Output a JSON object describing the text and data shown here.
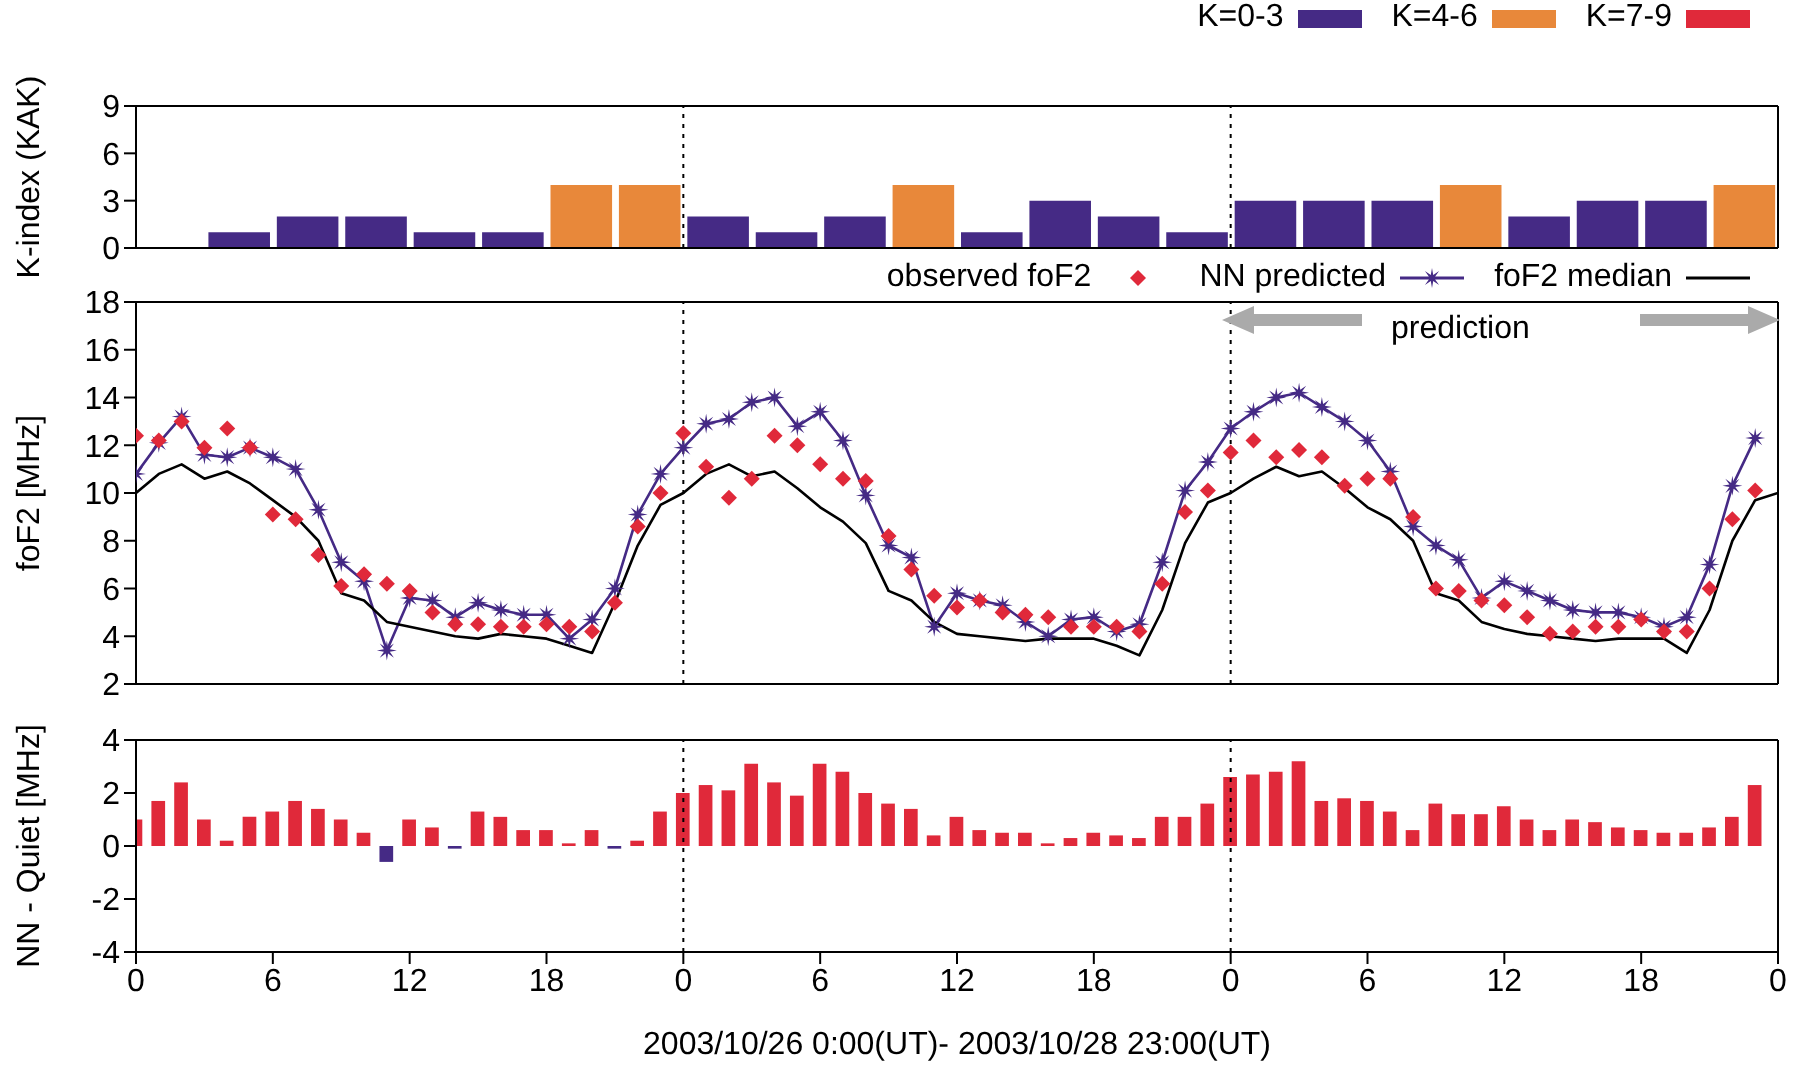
{
  "chart_data": [
    {
      "type": "bar",
      "ylabel": "K-index (KAK)",
      "x": [
        "2003-10-26T01:30",
        "2003-10-26T04:30",
        "2003-10-26T07:30",
        "2003-10-26T10:30",
        "2003-10-26T13:30",
        "2003-10-26T16:30",
        "2003-10-26T19:30",
        "2003-10-26T22:30",
        "2003-10-27T01:30",
        "2003-10-27T04:30",
        "2003-10-27T07:30",
        "2003-10-27T10:30",
        "2003-10-27T13:30",
        "2003-10-27T16:30",
        "2003-10-27T19:30",
        "2003-10-27T22:30",
        "2003-10-28T01:30",
        "2003-10-28T04:30",
        "2003-10-28T07:30",
        "2003-10-28T10:30",
        "2003-10-28T13:30",
        "2003-10-28T16:30",
        "2003-10-28T19:30",
        "2003-10-28T22:30"
      ],
      "xlim": [
        "2003-10-26T00:00",
        "2003-10-29T00:00"
      ],
      "ylim": [
        0,
        9
      ],
      "yticks": [
        0,
        3,
        6,
        9
      ],
      "stacked": true,
      "legend": "top right",
      "tick_labels": "y",
      "ref_lines": [
        {
          "axis": "x",
          "value": "2003-10-27T00:00",
          "color": "#000000",
          "line_style": "dotted"
        },
        {
          "axis": "x",
          "value": "2003-10-28T00:00",
          "color": "#000000",
          "line_style": "dotted"
        }
      ],
      "series": [
        {
          "name": "K=0-3",
          "color": "#452a85",
          "values": [
            0,
            1,
            2,
            2,
            1,
            1,
            null,
            null,
            2,
            1,
            2,
            null,
            1,
            3,
            2,
            1,
            3,
            3,
            3,
            null,
            2,
            3,
            3,
            null
          ]
        },
        {
          "name": "K=4-6",
          "color": "#e8883a",
          "values": [
            null,
            null,
            null,
            null,
            null,
            null,
            4,
            4,
            null,
            null,
            null,
            4,
            null,
            null,
            null,
            null,
            null,
            null,
            null,
            4,
            null,
            null,
            null,
            4
          ]
        },
        {
          "name": "K=7-9",
          "color": "#e0293a",
          "values": [
            null,
            null,
            null,
            null,
            null,
            null,
            null,
            null,
            null,
            null,
            null,
            null,
            null,
            null,
            null,
            null,
            null,
            null,
            null,
            null,
            null,
            null,
            null,
            null
          ]
        }
      ]
    },
    {
      "type": "line",
      "ylabel": "foF2 [MHz]",
      "xlim": [
        "2003-10-26T00:00",
        "2003-10-29T00:00"
      ],
      "ylim": [
        2,
        18
      ],
      "yticks": [
        2,
        4,
        6,
        8,
        10,
        12,
        14,
        16,
        18
      ],
      "legend": "top right",
      "tick_labels": "y",
      "annotations": [
        "prediction"
      ],
      "xticks": [
        {
          "value": "2003-10-26T00:00",
          "label": null
        },
        {
          "value": "2003-10-26T06:00",
          "label": null
        },
        {
          "value": "2003-10-26T12:00",
          "label": null
        },
        {
          "value": "2003-10-26T18:00",
          "label": null
        },
        {
          "value": "2003-10-27T00:00",
          "label": null
        },
        {
          "value": "2003-10-27T06:00",
          "label": null
        },
        {
          "value": "2003-10-27T12:00",
          "label": null
        },
        {
          "value": "2003-10-27T18:00",
          "label": null
        },
        {
          "value": "2003-10-28T00:00",
          "label": null
        },
        {
          "value": "2003-10-28T06:00",
          "label": null
        },
        {
          "value": "2003-10-28T12:00",
          "label": null
        },
        {
          "value": "2003-10-28T18:00",
          "label": null
        },
        {
          "value": "2003-10-29T00:00",
          "label": null
        }
      ],
      "ref_lines": [
        {
          "axis": "x",
          "value": "2003-10-27T00:00",
          "color": "#000000",
          "line_style": "dotted"
        },
        {
          "axis": "x",
          "value": "2003-10-28T00:00",
          "color": "#000000",
          "line_style": "dotted"
        }
      ],
      "x": [
        "2003-10-26T00:00",
        "2003-10-26T01:00",
        "2003-10-26T02:00",
        "2003-10-26T03:00",
        "2003-10-26T04:00",
        "2003-10-26T05:00",
        "2003-10-26T06:00",
        "2003-10-26T07:00",
        "2003-10-26T08:00",
        "2003-10-26T09:00",
        "2003-10-26T10:00",
        "2003-10-26T11:00",
        "2003-10-26T12:00",
        "2003-10-26T13:00",
        "2003-10-26T14:00",
        "2003-10-26T15:00",
        "2003-10-26T16:00",
        "2003-10-26T17:00",
        "2003-10-26T18:00",
        "2003-10-26T19:00",
        "2003-10-26T20:00",
        "2003-10-26T21:00",
        "2003-10-26T22:00",
        "2003-10-26T23:00",
        "2003-10-27T00:00",
        "2003-10-27T01:00",
        "2003-10-27T02:00",
        "2003-10-27T03:00",
        "2003-10-27T04:00",
        "2003-10-27T05:00",
        "2003-10-27T06:00",
        "2003-10-27T07:00",
        "2003-10-27T08:00",
        "2003-10-27T09:00",
        "2003-10-27T10:00",
        "2003-10-27T11:00",
        "2003-10-27T12:00",
        "2003-10-27T13:00",
        "2003-10-27T14:00",
        "2003-10-27T15:00",
        "2003-10-27T16:00",
        "2003-10-27T17:00",
        "2003-10-27T18:00",
        "2003-10-27T19:00",
        "2003-10-27T20:00",
        "2003-10-27T21:00",
        "2003-10-27T22:00",
        "2003-10-27T23:00",
        "2003-10-28T00:00",
        "2003-10-28T01:00",
        "2003-10-28T02:00",
        "2003-10-28T03:00",
        "2003-10-28T04:00",
        "2003-10-28T05:00",
        "2003-10-28T06:00",
        "2003-10-28T07:00",
        "2003-10-28T08:00",
        "2003-10-28T09:00",
        "2003-10-28T10:00",
        "2003-10-28T11:00",
        "2003-10-28T12:00",
        "2003-10-28T13:00",
        "2003-10-28T14:00",
        "2003-10-28T15:00",
        "2003-10-28T16:00",
        "2003-10-28T17:00",
        "2003-10-28T18:00",
        "2003-10-28T19:00",
        "2003-10-28T20:00",
        "2003-10-28T21:00",
        "2003-10-28T22:00",
        "2003-10-28T23:00"
      ],
      "series": [
        {
          "name": "observed foF2",
          "type": "scatter",
          "marker": "diamond",
          "color": "#e0293a",
          "values": [
            12.4,
            12.2,
            13.0,
            11.9,
            12.7,
            11.9,
            9.1,
            8.9,
            7.4,
            6.1,
            6.6,
            6.2,
            5.9,
            5.0,
            4.5,
            4.5,
            4.4,
            4.4,
            4.5,
            4.4,
            4.2,
            5.4,
            8.6,
            10.0,
            12.5,
            11.1,
            9.8,
            10.6,
            12.4,
            12.0,
            11.2,
            10.6,
            10.5,
            8.2,
            6.8,
            5.7,
            5.2,
            5.5,
            5.0,
            4.9,
            4.8,
            4.4,
            4.4,
            4.4,
            4.2,
            6.2,
            9.2,
            10.1,
            11.7,
            12.2,
            11.5,
            11.8,
            11.5,
            10.3,
            10.6,
            10.6,
            9.0,
            6.0,
            5.9,
            5.5,
            5.3,
            4.8,
            4.1,
            4.2,
            4.4,
            4.4,
            4.7,
            4.2,
            4.2,
            6.0,
            8.9,
            10.1
          ]
        },
        {
          "name": "NN predicted",
          "type": "line",
          "marker": "star",
          "color": "#452a85",
          "values": [
            10.8,
            12.1,
            13.2,
            11.6,
            11.5,
            11.9,
            11.5,
            11.0,
            9.3,
            7.1,
            6.3,
            3.4,
            5.6,
            5.5,
            4.8,
            5.4,
            5.1,
            4.9,
            4.9,
            3.9,
            4.7,
            6.0,
            9.1,
            10.8,
            11.9,
            12.9,
            13.1,
            13.8,
            14.0,
            12.8,
            13.4,
            12.2,
            9.9,
            7.8,
            7.3,
            4.4,
            5.8,
            5.5,
            5.3,
            4.6,
            4.0,
            4.7,
            4.8,
            4.2,
            4.5,
            7.1,
            10.1,
            11.3,
            12.7,
            13.4,
            14.0,
            14.2,
            13.6,
            13.0,
            12.2,
            10.9,
            8.6,
            7.8,
            7.2,
            5.6,
            6.3,
            5.9,
            5.5,
            5.1,
            5.0,
            5.0,
            4.8,
            4.4,
            4.8,
            7.0,
            10.3,
            12.3
          ]
        },
        {
          "name": "foF2 median",
          "type": "line",
          "marker": "none",
          "color": "#000000",
          "x": [
            "2003-10-26T00:00",
            "2003-10-26T01:00",
            "2003-10-26T02:00",
            "2003-10-26T03:00",
            "2003-10-26T04:00",
            "2003-10-26T05:00",
            "2003-10-26T06:00",
            "2003-10-26T07:00",
            "2003-10-26T08:00",
            "2003-10-26T09:00",
            "2003-10-26T10:00",
            "2003-10-26T11:00",
            "2003-10-26T12:00",
            "2003-10-26T13:00",
            "2003-10-26T14:00",
            "2003-10-26T15:00",
            "2003-10-26T16:00",
            "2003-10-26T17:00",
            "2003-10-26T18:00",
            "2003-10-26T19:00",
            "2003-10-26T20:00",
            "2003-10-26T21:00",
            "2003-10-26T22:00",
            "2003-10-26T23:00",
            "2003-10-27T00:00",
            "2003-10-27T01:00",
            "2003-10-27T02:00",
            "2003-10-27T03:00",
            "2003-10-27T04:00",
            "2003-10-27T05:00",
            "2003-10-27T06:00",
            "2003-10-27T07:00",
            "2003-10-27T08:00",
            "2003-10-27T09:00",
            "2003-10-27T10:00",
            "2003-10-27T11:00",
            "2003-10-27T12:00",
            "2003-10-27T13:00",
            "2003-10-27T14:00",
            "2003-10-27T15:00",
            "2003-10-27T16:00",
            "2003-10-27T17:00",
            "2003-10-27T18:00",
            "2003-10-27T19:00",
            "2003-10-27T20:00",
            "2003-10-27T21:00",
            "2003-10-27T22:00",
            "2003-10-27T23:00",
            "2003-10-28T00:00",
            "2003-10-28T01:00",
            "2003-10-28T02:00",
            "2003-10-28T03:00",
            "2003-10-28T04:00",
            "2003-10-28T05:00",
            "2003-10-28T06:00",
            "2003-10-28T07:00",
            "2003-10-28T08:00",
            "2003-10-28T09:00",
            "2003-10-28T10:00",
            "2003-10-28T11:00",
            "2003-10-28T12:00",
            "2003-10-28T13:00",
            "2003-10-28T14:00",
            "2003-10-28T15:00",
            "2003-10-28T16:00",
            "2003-10-28T17:00",
            "2003-10-28T18:00",
            "2003-10-28T19:00",
            "2003-10-28T20:00",
            "2003-10-28T21:00",
            "2003-10-28T22:00",
            "2003-10-28T23:00",
            "2003-10-29T00:00"
          ],
          "values": [
            10.0,
            10.8,
            11.2,
            10.6,
            10.9,
            10.4,
            9.7,
            9.0,
            8.0,
            5.8,
            5.5,
            4.6,
            4.4,
            4.2,
            4.0,
            3.9,
            4.1,
            4.0,
            3.9,
            3.6,
            3.3,
            5.4,
            7.8,
            9.5,
            10.0,
            10.8,
            11.2,
            10.7,
            10.9,
            10.2,
            9.4,
            8.8,
            7.9,
            5.9,
            5.5,
            4.6,
            4.1,
            4.0,
            3.9,
            3.8,
            3.9,
            3.9,
            3.9,
            3.6,
            3.2,
            5.1,
            7.9,
            9.6,
            10.0,
            10.6,
            11.1,
            10.7,
            10.9,
            10.2,
            9.4,
            8.9,
            8.0,
            5.8,
            5.5,
            4.6,
            4.3,
            4.1,
            4.0,
            3.9,
            3.8,
            3.9,
            3.9,
            3.9,
            3.3,
            5.1,
            8.0,
            9.7,
            10.0
          ]
        }
      ]
    },
    {
      "type": "bar",
      "xlabel": "2003/10/26 0:00(UT)- 2003/10/28 23:00(UT)",
      "ylabel": "NN - Quiet [MHz]",
      "xlim": [
        "2003-10-26T00:00",
        "2003-10-29T00:00"
      ],
      "ylim": [
        -4,
        4
      ],
      "yticks": [
        -4,
        -2,
        0,
        2,
        4
      ],
      "xticks": [
        {
          "value": "2003-10-26T00:00",
          "label": "0"
        },
        {
          "value": "2003-10-26T06:00",
          "label": "6"
        },
        {
          "value": "2003-10-26T12:00",
          "label": "12"
        },
        {
          "value": "2003-10-26T18:00",
          "label": "18"
        },
        {
          "value": "2003-10-27T00:00",
          "label": "0"
        },
        {
          "value": "2003-10-27T06:00",
          "label": "6"
        },
        {
          "value": "2003-10-27T12:00",
          "label": "12"
        },
        {
          "value": "2003-10-27T18:00",
          "label": "18"
        },
        {
          "value": "2003-10-28T00:00",
          "label": "0"
        },
        {
          "value": "2003-10-28T06:00",
          "label": "6"
        },
        {
          "value": "2003-10-28T12:00",
          "label": "12"
        },
        {
          "value": "2003-10-28T18:00",
          "label": "18"
        },
        {
          "value": "2003-10-29T00:00",
          "label": "0"
        }
      ],
      "ref_lines": [
        {
          "axis": "x",
          "value": "2003-10-27T00:00",
          "color": "#000000",
          "line_style": "dotted"
        },
        {
          "axis": "x",
          "value": "2003-10-28T00:00",
          "color": "#000000",
          "line_style": "dotted"
        }
      ],
      "x": [
        "2003-10-26T00:00",
        "2003-10-26T01:00",
        "2003-10-26T02:00",
        "2003-10-26T03:00",
        "2003-10-26T04:00",
        "2003-10-26T05:00",
        "2003-10-26T06:00",
        "2003-10-26T07:00",
        "2003-10-26T08:00",
        "2003-10-26T09:00",
        "2003-10-26T10:00",
        "2003-10-26T11:00",
        "2003-10-26T12:00",
        "2003-10-26T13:00",
        "2003-10-26T14:00",
        "2003-10-26T15:00",
        "2003-10-26T16:00",
        "2003-10-26T17:00",
        "2003-10-26T18:00",
        "2003-10-26T19:00",
        "2003-10-26T20:00",
        "2003-10-26T21:00",
        "2003-10-26T22:00",
        "2003-10-26T23:00",
        "2003-10-27T00:00",
        "2003-10-27T01:00",
        "2003-10-27T02:00",
        "2003-10-27T03:00",
        "2003-10-27T04:00",
        "2003-10-27T05:00",
        "2003-10-27T06:00",
        "2003-10-27T07:00",
        "2003-10-27T08:00",
        "2003-10-27T09:00",
        "2003-10-27T10:00",
        "2003-10-27T11:00",
        "2003-10-27T12:00",
        "2003-10-27T13:00",
        "2003-10-27T14:00",
        "2003-10-27T15:00",
        "2003-10-27T16:00",
        "2003-10-27T17:00",
        "2003-10-27T18:00",
        "2003-10-27T19:00",
        "2003-10-27T20:00",
        "2003-10-27T21:00",
        "2003-10-27T22:00",
        "2003-10-27T23:00",
        "2003-10-28T00:00",
        "2003-10-28T01:00",
        "2003-10-28T02:00",
        "2003-10-28T03:00",
        "2003-10-28T04:00",
        "2003-10-28T05:00",
        "2003-10-28T06:00",
        "2003-10-28T07:00",
        "2003-10-28T08:00",
        "2003-10-28T09:00",
        "2003-10-28T10:00",
        "2003-10-28T11:00",
        "2003-10-28T12:00",
        "2003-10-28T13:00",
        "2003-10-28T14:00",
        "2003-10-28T15:00",
        "2003-10-28T16:00",
        "2003-10-28T17:00",
        "2003-10-28T18:00",
        "2003-10-28T19:00",
        "2003-10-28T20:00",
        "2003-10-28T21:00",
        "2003-10-28T22:00",
        "2003-10-28T23:00"
      ],
      "values": [
        1.0,
        1.7,
        2.4,
        1.0,
        0.2,
        1.1,
        1.3,
        1.7,
        1.4,
        1.0,
        0.5,
        -0.6,
        1.0,
        0.7,
        -0.1,
        1.3,
        1.1,
        0.6,
        0.6,
        0.1,
        0.6,
        -0.1,
        0.2,
        1.3,
        2.0,
        2.3,
        2.1,
        3.1,
        2.4,
        1.9,
        3.1,
        2.8,
        2.0,
        1.6,
        1.4,
        0.4,
        1.1,
        0.6,
        0.5,
        0.5,
        0.1,
        0.3,
        0.5,
        0.4,
        0.3,
        1.1,
        1.1,
        1.6,
        2.6,
        2.7,
        2.8,
        3.2,
        1.7,
        1.8,
        1.7,
        1.3,
        0.6,
        1.6,
        1.2,
        1.2,
        1.5,
        1.0,
        0.6,
        1.0,
        0.9,
        0.7,
        0.6,
        0.5,
        0.5,
        0.7,
        1.1,
        2.3
      ],
      "colors": [
        "#e0293a",
        "#e0293a",
        "#e0293a",
        "#e0293a",
        "#e0293a",
        "#e0293a",
        "#e0293a",
        "#e0293a",
        "#e0293a",
        "#e0293a",
        "#e0293a",
        "#452a85",
        "#e0293a",
        "#e0293a",
        "#452a85",
        "#e0293a",
        "#e0293a",
        "#e0293a",
        "#e0293a",
        "#e0293a",
        "#e0293a",
        "#452a85",
        "#e0293a",
        "#e0293a",
        "#e0293a",
        "#e0293a",
        "#e0293a",
        "#e0293a",
        "#e0293a",
        "#e0293a",
        "#e0293a",
        "#e0293a",
        "#e0293a",
        "#e0293a",
        "#e0293a",
        "#e0293a",
        "#e0293a",
        "#e0293a",
        "#e0293a",
        "#e0293a",
        "#e0293a",
        "#e0293a",
        "#e0293a",
        "#e0293a",
        "#e0293a",
        "#e0293a",
        "#e0293a",
        "#e0293a",
        "#e0293a",
        "#e0293a",
        "#e0293a",
        "#e0293a",
        "#e0293a",
        "#e0293a",
        "#e0293a",
        "#e0293a",
        "#e0293a",
        "#e0293a",
        "#e0293a",
        "#e0293a",
        "#e0293a",
        "#e0293a",
        "#e0293a",
        "#e0293a",
        "#e0293a",
        "#e0293a",
        "#e0293a",
        "#e0293a",
        "#e0293a",
        "#e0293a",
        "#e0293a",
        "#e0293a"
      ]
    }
  ]
}
